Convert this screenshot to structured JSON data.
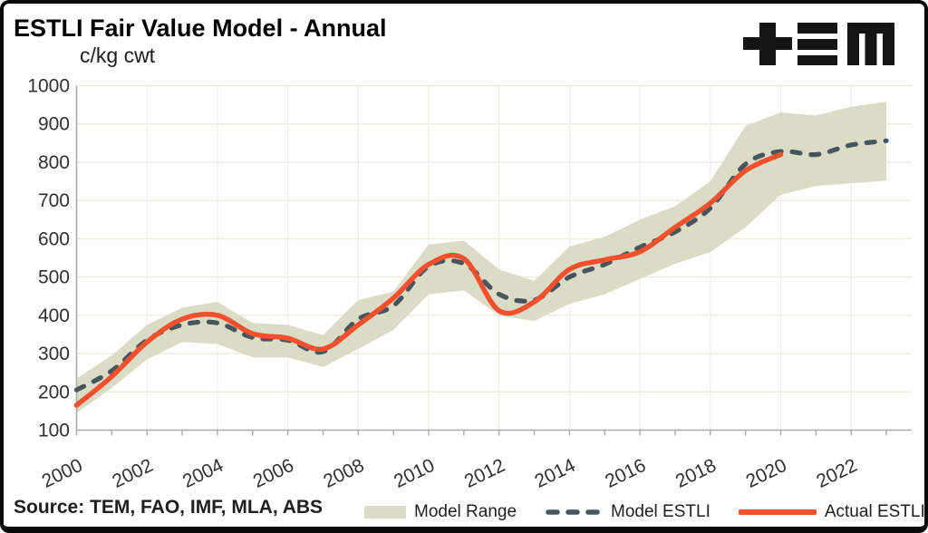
{
  "header": {
    "title": "ESTLI Fair Value Model - Annual",
    "logo_name": "tem-logo"
  },
  "chart": {
    "unit_label": "c/kg cwt"
  },
  "source": {
    "label": "Source: TEM, FAO, IMF, MLA, ABS"
  },
  "legend": {
    "items": [
      {
        "label": "Model Range",
        "type": "band"
      },
      {
        "label": "Model ESTLI",
        "type": "dashed-line"
      },
      {
        "label": "Actual ESTLI",
        "type": "solid-line"
      }
    ]
  },
  "colors": {
    "model_range_band": "#DBDCC5",
    "model_estli_line": "#47565E",
    "actual_estli_line": "#F4502E",
    "gridline": "#ECEBDE",
    "vertical_gridline": "#EFEEE4",
    "axis": "#ABABAB",
    "tick_label": "#303030",
    "logo_black": "#151515"
  },
  "chart_data": {
    "type": "line",
    "title": "ESTLI Fair Value Model - Annual",
    "ylabel": "c/kg cwt",
    "ylim": [
      100,
      1000
    ],
    "y_ticks": [
      100,
      200,
      300,
      400,
      500,
      600,
      700,
      800,
      900,
      1000
    ],
    "x_tick_labels": [
      2000,
      2002,
      2004,
      2006,
      2008,
      2010,
      2012,
      2014,
      2016,
      2018,
      2020,
      2022
    ],
    "grid": "horizontal-and-light-vertical",
    "legend_position": "bottom",
    "years": [
      2000,
      2001,
      2002,
      2003,
      2004,
      2005,
      2006,
      2007,
      2008,
      2009,
      2010,
      2011,
      2012,
      2013,
      2014,
      2015,
      2016,
      2017,
      2018,
      2019,
      2020,
      2021,
      2022,
      2023
    ],
    "series": [
      {
        "name": "Model Range",
        "type": "band",
        "low": [
          145,
          210,
          285,
          330,
          325,
          290,
          290,
          265,
          312,
          362,
          455,
          465,
          400,
          385,
          430,
          455,
          495,
          535,
          565,
          630,
          715,
          738,
          745,
          752
        ],
        "high": [
          235,
          295,
          375,
          420,
          435,
          380,
          375,
          348,
          440,
          462,
          585,
          595,
          520,
          490,
          580,
          605,
          650,
          685,
          750,
          895,
          930,
          922,
          945,
          958
        ]
      },
      {
        "name": "Model ESTLI",
        "type": "dashed-line",
        "values": [
          205,
          255,
          335,
          375,
          380,
          342,
          335,
          305,
          390,
          425,
          528,
          535,
          455,
          440,
          500,
          533,
          578,
          618,
          680,
          795,
          828,
          820,
          845,
          856
        ]
      },
      {
        "name": "Actual ESTLI",
        "type": "solid-line",
        "values": [
          165,
          240,
          330,
          390,
          400,
          352,
          340,
          312,
          375,
          445,
          533,
          548,
          412,
          435,
          520,
          545,
          566,
          630,
          693,
          778,
          820,
          null,
          null,
          null
        ]
      }
    ]
  }
}
